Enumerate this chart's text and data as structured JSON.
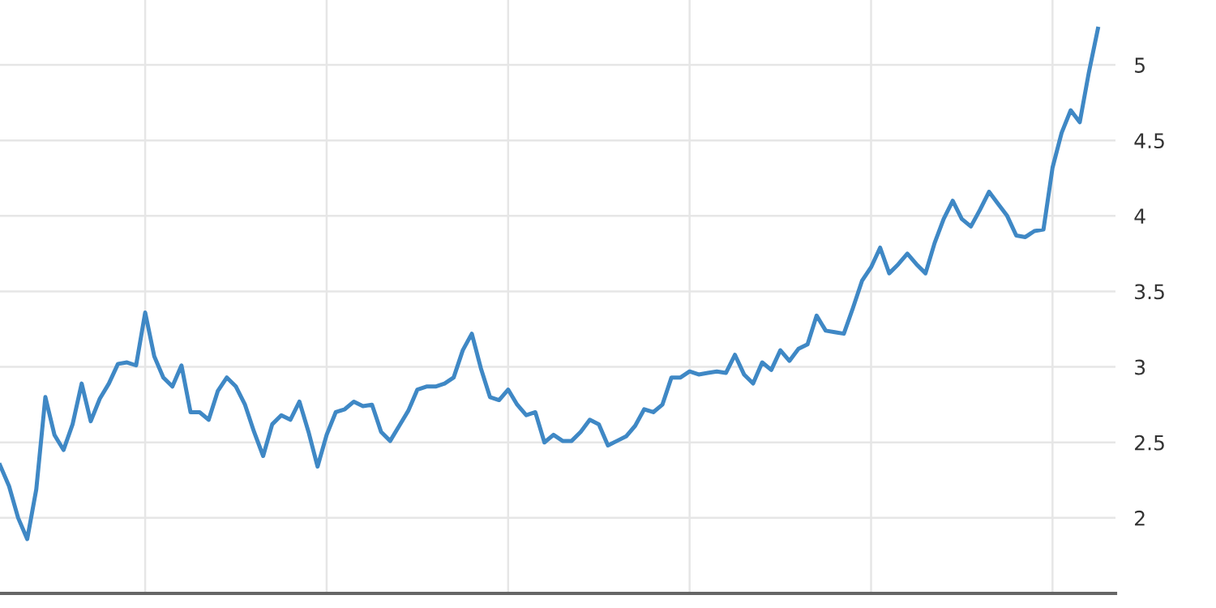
{
  "chart_data": {
    "type": "line",
    "categories": [
      null,
      null,
      null,
      null,
      null,
      null,
      null,
      null,
      null,
      null,
      null,
      null,
      null,
      null,
      null,
      null,
      null,
      null,
      null,
      null,
      null,
      null,
      null,
      null,
      null,
      null,
      null,
      null,
      null,
      null,
      null,
      null,
      null,
      null,
      null,
      null,
      null,
      null,
      null,
      null,
      null,
      null,
      null,
      null,
      null,
      null,
      null,
      null,
      null,
      null,
      null,
      null,
      null,
      null,
      null,
      null,
      null,
      null,
      null,
      null,
      null,
      null,
      null,
      null,
      null,
      null,
      null,
      null,
      null,
      null,
      null,
      null,
      null,
      null,
      null,
      null,
      null,
      null,
      null,
      null,
      null,
      null,
      null,
      null,
      null,
      null,
      null,
      null,
      null,
      null,
      null,
      null,
      null,
      null,
      null,
      null,
      null,
      null,
      null,
      null,
      null,
      null,
      null,
      null,
      null,
      null,
      null,
      null,
      null,
      null,
      null,
      null,
      null,
      null,
      null,
      null,
      null,
      null,
      null,
      null,
      null,
      null
    ],
    "series": [
      {
        "color": "#3f88c5",
        "values": [
          2.35,
          2.21,
          2.0,
          1.86,
          2.19,
          2.8,
          2.55,
          2.45,
          2.62,
          2.89,
          2.64,
          2.79,
          2.89,
          3.02,
          3.03,
          3.01,
          3.36,
          3.07,
          2.93,
          2.87,
          3.01,
          2.7,
          2.7,
          2.65,
          2.84,
          2.93,
          2.87,
          2.75,
          2.57,
          2.41,
          2.62,
          2.68,
          2.65,
          2.77,
          2.57,
          2.34,
          2.55,
          2.7,
          2.72,
          2.77,
          2.74,
          2.75,
          2.57,
          2.51,
          2.61,
          2.71,
          2.85,
          2.87,
          2.87,
          2.89,
          2.93,
          3.11,
          3.22,
          2.99,
          2.8,
          2.78,
          2.85,
          2.75,
          2.68,
          2.7,
          2.5,
          2.55,
          2.51,
          2.51,
          2.57,
          2.65,
          2.62,
          2.48,
          2.51,
          2.54,
          2.61,
          2.72,
          2.7,
          2.75,
          2.93,
          2.93,
          2.97,
          2.95,
          2.96,
          2.97,
          2.96,
          3.08,
          2.95,
          2.89,
          3.03,
          2.98,
          3.11,
          3.04,
          3.12,
          3.15,
          3.34,
          3.24,
          3.23,
          3.22,
          3.39,
          3.57,
          3.66,
          3.79,
          3.62,
          3.68,
          3.75,
          3.68,
          3.62,
          3.82,
          3.98,
          4.1,
          3.98,
          3.93,
          4.04,
          4.16,
          4.08,
          4.0,
          3.87,
          3.86,
          3.9,
          3.91,
          4.32,
          4.55,
          4.7,
          4.62,
          4.95,
          5.24
        ]
      }
    ],
    "ylim": [
      1.5,
      5.43
    ],
    "yticks": [
      2,
      2.5,
      3,
      3.5,
      4,
      4.5,
      5
    ],
    "grid": true,
    "tick_labels": "y",
    "line_style": "solid",
    "marker": "none"
  }
}
